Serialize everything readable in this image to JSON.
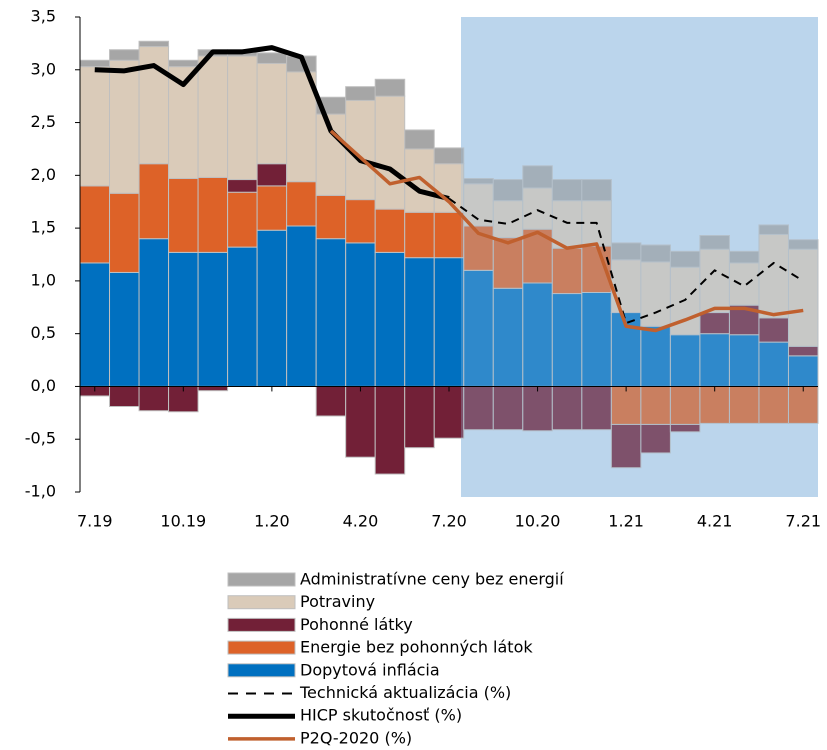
{
  "chart_data": {
    "type": "bar",
    "categories": [
      "7.19",
      null,
      null,
      "10.19",
      null,
      null,
      "1.20",
      null,
      null,
      "4.20",
      null,
      null,
      "7.20",
      null,
      null,
      "10.20",
      null,
      null,
      "1.21",
      null,
      null,
      "4.21",
      null,
      null,
      "7.21"
    ],
    "ylim": [
      -1.0,
      3.5
    ],
    "yticks": [
      {
        "value": -1.0,
        "label": "-1,0"
      },
      {
        "value": -0.5,
        "label": "-0,5"
      },
      {
        "value": 0,
        "label": "0,0"
      },
      {
        "value": 0.5,
        "label": "0,5"
      },
      {
        "value": 1.0,
        "label": "1,0"
      },
      {
        "value": 1.5,
        "label": "1,5"
      },
      {
        "value": 2.0,
        "label": "2,0"
      },
      {
        "value": 2.5,
        "label": "2,5"
      },
      {
        "value": 3.0,
        "label": "3,0"
      },
      {
        "value": 3.5,
        "label": "3,5"
      }
    ],
    "stacked": true,
    "series": [
      {
        "name": "Administratívne ceny bez energií",
        "type": "bar",
        "color": "#a6a6a6",
        "values": [
          0.06,
          0.1,
          0.05,
          0.06,
          0.06,
          0.06,
          0.1,
          0.15,
          0.16,
          0.13,
          0.16,
          0.18,
          0.15,
          0.05,
          0.2,
          0.21,
          0.2,
          0.2,
          0.16,
          0.16,
          0.15,
          0.13,
          0.11,
          0.09,
          0.09
        ]
      },
      {
        "name": "Potraviny",
        "type": "bar",
        "color": "#dacbb9",
        "values": [
          1.13,
          1.26,
          1.11,
          1.06,
          1.15,
          1.17,
          0.95,
          1.04,
          0.77,
          0.94,
          1.07,
          0.6,
          0.46,
          0.4,
          0.35,
          0.39,
          0.45,
          0.43,
          0.5,
          0.61,
          0.64,
          0.6,
          0.4,
          0.79,
          0.92
        ]
      },
      {
        "name": "Pohonné látky",
        "type": "bar",
        "color": "#722037",
        "values": [
          -0.09,
          -0.19,
          -0.23,
          -0.24,
          -0.04,
          0.12,
          0.21,
          0,
          -0.28,
          -0.67,
          -0.83,
          -0.58,
          -0.49,
          -0.41,
          -0.41,
          -0.42,
          -0.41,
          -0.41,
          -0.41,
          -0.27,
          -0.07,
          0.2,
          0.28,
          0.23,
          0.09
        ]
      },
      {
        "name": "Energie bez pohonných látok",
        "type": "bar",
        "color": "#dd6228",
        "values": [
          0.73,
          0.75,
          0.71,
          0.7,
          0.71,
          0.52,
          0.42,
          0.42,
          0.41,
          0.41,
          0.41,
          0.43,
          0.43,
          0.42,
          0.48,
          0.51,
          0.43,
          0.44,
          -0.36,
          -0.36,
          -0.36,
          -0.35,
          -0.35,
          -0.35,
          -0.35
        ]
      },
      {
        "name": "Dopytová inflácia",
        "type": "bar",
        "color": "#0070c0",
        "values": [
          1.17,
          1.08,
          1.4,
          1.27,
          1.27,
          1.32,
          1.48,
          1.52,
          1.4,
          1.36,
          1.27,
          1.22,
          1.22,
          1.1,
          0.93,
          0.98,
          0.88,
          0.89,
          0.7,
          0.57,
          0.49,
          0.5,
          0.49,
          0.42,
          0.29
        ]
      },
      {
        "name": "Technická aktualizácia (%)",
        "type": "line",
        "color": "#000000",
        "dashed": true,
        "values": [
          null,
          null,
          null,
          null,
          null,
          null,
          null,
          null,
          null,
          null,
          null,
          null,
          1.78,
          1.58,
          1.54,
          1.67,
          1.55,
          1.55,
          0.6,
          0.7,
          0.82,
          1.1,
          0.95,
          1.17,
          1.0
        ]
      },
      {
        "name": "HICP skutočnosť (%)",
        "type": "line",
        "color": "#000000",
        "width": 5,
        "values": [
          3.0,
          2.99,
          3.04,
          2.86,
          3.17,
          3.17,
          3.21,
          3.12,
          2.42,
          2.14,
          2.06,
          1.85,
          1.78,
          null,
          null,
          null,
          null,
          null,
          null,
          null,
          null,
          null,
          null,
          null,
          null
        ]
      },
      {
        "name": "P2Q-2020 (%)",
        "type": "line",
        "color": "#c0602e",
        "width": 3.5,
        "values": [
          null,
          null,
          null,
          null,
          null,
          null,
          null,
          null,
          2.42,
          2.17,
          1.92,
          1.98,
          1.75,
          1.45,
          1.36,
          1.46,
          1.31,
          1.35,
          0.57,
          0.53,
          0.63,
          0.74,
          0.74,
          0.68,
          0.72
        ]
      }
    ]
  }
}
